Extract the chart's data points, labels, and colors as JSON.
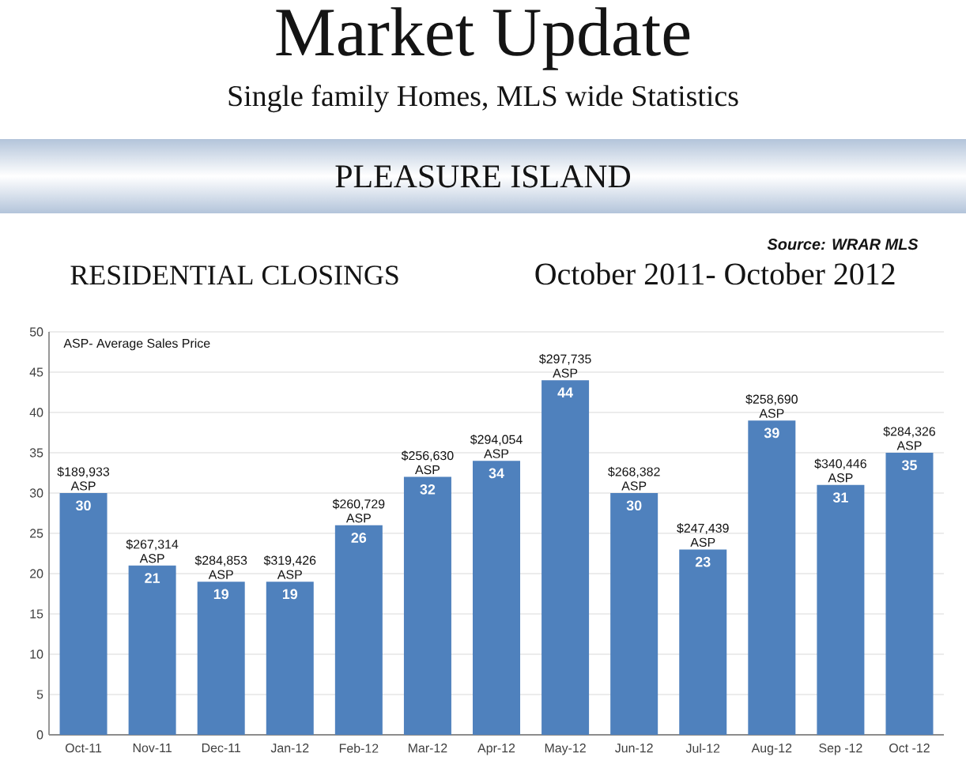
{
  "chart_data": {
    "type": "bar",
    "title": "Market Update",
    "subtitle": "Single family Homes, MLS wide Statistics",
    "categories": [
      "Oct-11",
      "Nov-11",
      "Dec-11",
      "Jan-12",
      "Feb-12",
      "Mar-12",
      "Apr-12",
      "May-12",
      "Jun-12",
      "Jul-12",
      "Aug-12",
      "Sep -12",
      "Oct -12"
    ],
    "values": [
      30,
      21,
      19,
      19,
      26,
      32,
      34,
      44,
      30,
      23,
      39,
      31,
      35
    ],
    "color": "#4f81bd",
    "ylim": [
      0,
      50
    ],
    "yticks": [
      0,
      5,
      10,
      15,
      20,
      25,
      30,
      35,
      40,
      45,
      50
    ],
    "grid": "y",
    "data_labels": true,
    "annotations": [
      "PLEASURE ISLAND",
      "Source: WRAR MLS",
      "RESIDENTIAL CLOSINGS",
      "October 2011- October 2012",
      "ASP- Average Sales Price",
      {
        "text": "$189,933 ASP",
        "x": "Oct-11",
        "y": 30
      },
      {
        "text": "$267,314 ASP",
        "x": "Nov-11",
        "y": 21
      },
      {
        "text": "$284,853 ASP",
        "x": "Dec-11",
        "y": 19
      },
      {
        "text": "$319,426 ASP",
        "x": "Jan-12",
        "y": 19
      },
      {
        "text": "$260,729 ASP",
        "x": "Feb-12",
        "y": 26
      },
      {
        "text": "$256,630 ASP",
        "x": "Mar-12",
        "y": 32
      },
      {
        "text": "$294,054 ASP",
        "x": "Apr-12",
        "y": 34
      },
      {
        "text": "$297,735 ASP",
        "x": "May-12",
        "y": 44
      },
      {
        "text": "$268,382 ASP",
        "x": "Jun-12",
        "y": 30
      },
      {
        "text": "$247,439 ASP",
        "x": "Jul-12",
        "y": 23
      },
      {
        "text": "$258,690 ASP",
        "x": "Aug-12",
        "y": 39
      },
      {
        "text": "$340,446 ASP",
        "x": "Sep -12",
        "y": 31
      },
      {
        "text": "$284,326 ASP",
        "x": "Oct -12",
        "y": 35
      }
    ]
  }
}
